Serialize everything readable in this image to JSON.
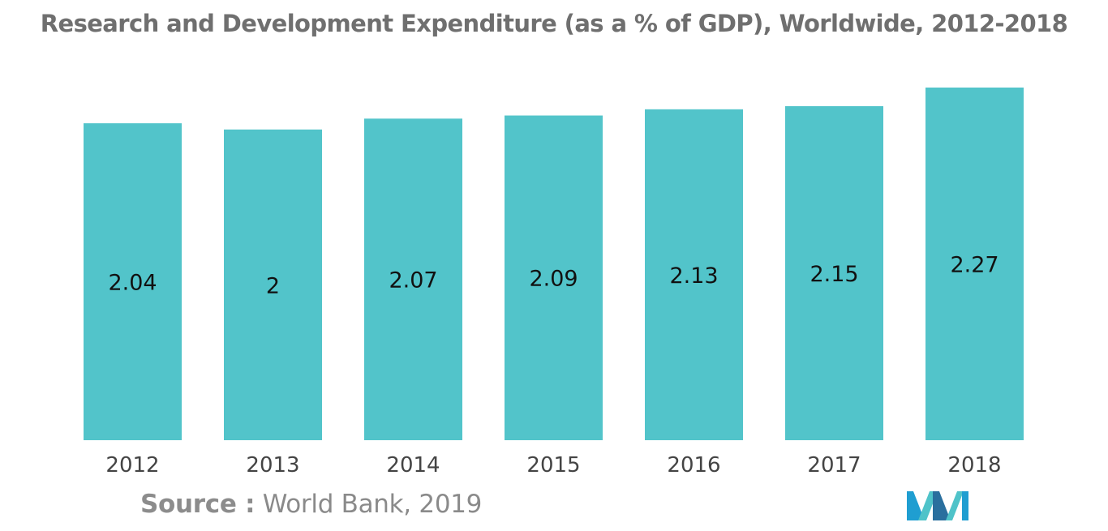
{
  "title": "Research and Development Expenditure (as a % of GDP), Worldwide, 2012-2018",
  "source": {
    "label": "Source :",
    "text": "World Bank, 2019"
  },
  "logo": {
    "icon": "mordor-intelligence-logo",
    "colors": [
      "#1f9ed1",
      "#4fc3c9",
      "#2a6f9e"
    ]
  },
  "colors": {
    "bar": "#52c4ca",
    "title": "#6f6f6f",
    "source": "#8a8a8a",
    "tick_label": "#444444",
    "value_label": "#111111"
  },
  "chart_data": {
    "type": "bar",
    "title": "Research and Development Expenditure (as a % of GDP), Worldwide, 2012-2018",
    "xlabel": "",
    "ylabel": "",
    "categories": [
      "2012",
      "2013",
      "2014",
      "2015",
      "2016",
      "2017",
      "2018"
    ],
    "values": [
      2.04,
      2,
      2.07,
      2.09,
      2.13,
      2.15,
      2.27
    ],
    "value_labels": [
      "2.04",
      "2",
      "2.07",
      "2.09",
      "2.13",
      "2.15",
      "2.27"
    ],
    "ylim": [
      0,
      2.27
    ],
    "grid": false,
    "legend": "none",
    "y_axis_visible": false
  }
}
